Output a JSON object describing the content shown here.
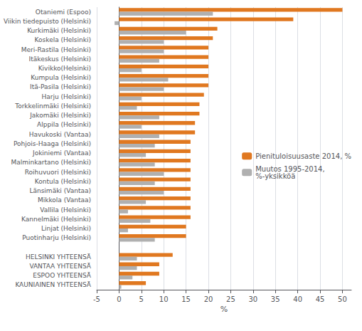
{
  "chart_data": {
    "type": "bar",
    "orientation": "horizontal",
    "categories": [
      "Otaniemi (Espoo)",
      "Viikin tiedepuisto (Helsinki)",
      "Kurkimäki (Helsinki)",
      "Koskela (Helsinki)",
      "Meri-Rastila (Helsinki)",
      "Itäkeskus (Helsinki)",
      "Kivikko(Helsinki)",
      "Kumpula (Helsinki)",
      "Itä-Pasila (Helsinki)",
      "Harju (Helsinki)",
      "Torkkelinmäki (Helsinki)",
      "Jakomäki (Helsinki)",
      "Alppila (Helsinki)",
      "Havukoski (Vantaa)",
      "Pohjois-Haaga (Helsinki)",
      "Jokiniemi (Vantaa)",
      "Malminkartano (Helsinki)",
      "Roihuvuori (Helsinki)",
      "Kontula (Helsinki)",
      "Länsimäki (Vantaa)",
      "Mikkola (Vantaa)",
      "Vallila (Helsinki)",
      "Kannelmäki (Helsinki)",
      "Linjat (Helsinki)",
      "Puotinharju (Helsinki)",
      null,
      "HELSINKI YHTEENSÄ",
      "VANTAA YHTEENSÄ",
      "ESPOO YHTEENSÄ",
      "KAUNIAINEN YHTEENSÄ"
    ],
    "series": [
      {
        "name": "Pienituloisuusaste 2014, %",
        "color": "#E07820",
        "values": [
          50,
          39,
          22,
          21,
          20,
          20,
          20,
          20,
          20,
          19,
          18,
          18,
          17,
          17,
          16,
          16,
          16,
          16,
          16,
          16,
          16,
          16,
          16,
          15,
          15,
          null,
          12,
          9,
          9,
          6
        ]
      },
      {
        "name": "Muutos 1995-2014,\n%-yksikköä",
        "color": "#B0B0B0",
        "values": [
          21,
          -1,
          15,
          10,
          10,
          9,
          5,
          11,
          10,
          5,
          4,
          9,
          5,
          9,
          8,
          6,
          8,
          10,
          8,
          10,
          6,
          2,
          7,
          2,
          8,
          null,
          4,
          4,
          3,
          0.5
        ]
      }
    ],
    "xlabel": "%",
    "xlim": [
      -5,
      52
    ],
    "xticks": [
      -5,
      0,
      5,
      10,
      15,
      20,
      25,
      30,
      35,
      40,
      45,
      50
    ],
    "grid": true,
    "legend": "right"
  }
}
